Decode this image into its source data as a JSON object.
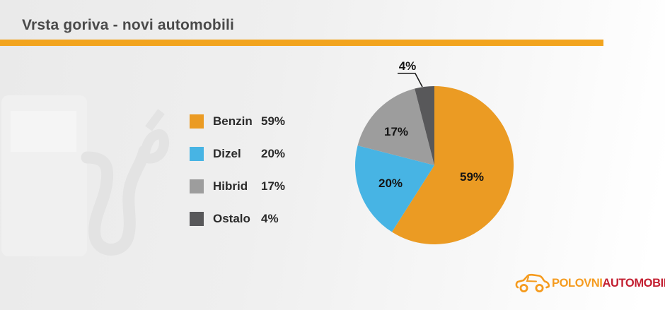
{
  "header": {
    "title": "Vrsta goriva - novi automobili"
  },
  "colors": {
    "accent_rule": "#f2a41e",
    "background_left": "#eaeaea",
    "background_right": "#ffffff",
    "title_text": "#4a4a4a",
    "label_text": "#2b2b2b"
  },
  "chart_data": {
    "type": "pie",
    "title": "Vrsta goriva - novi automobili",
    "start_angle_deg": 0,
    "direction": "clockwise",
    "legend_position": "left",
    "slices": [
      {
        "label": "Benzin",
        "value": 59,
        "display": "59%",
        "color": "#eb9b23"
      },
      {
        "label": "Dizel",
        "value": 20,
        "display": "20%",
        "color": "#47b4e4"
      },
      {
        "label": "Hibrid",
        "value": 17,
        "display": "17%",
        "color": "#9d9d9d"
      },
      {
        "label": "Ostalo",
        "value": 4,
        "display": "4%",
        "color": "#58585a"
      }
    ]
  },
  "watermark": {
    "icon": "fuel-pump-icon"
  },
  "footer_logo": {
    "icon": "car-icon",
    "brand_primary": "POLOVNI",
    "brand_secondary": "AUTOMOBILI",
    "color_primary": "#f59b1e",
    "color_secondary": "#c32032"
  }
}
